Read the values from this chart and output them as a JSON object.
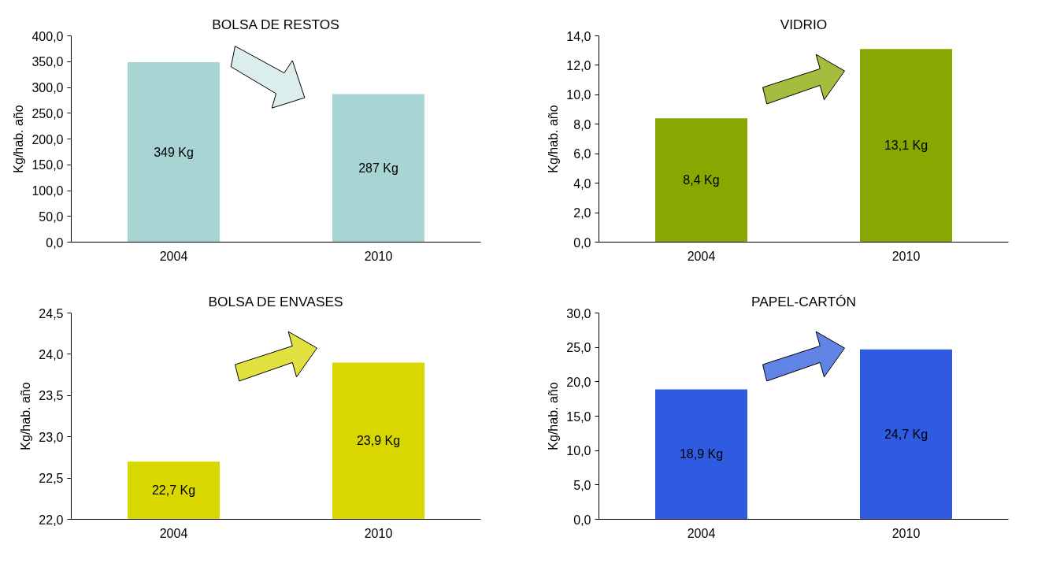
{
  "chart_data": [
    {
      "type": "bar",
      "title": "BOLSA DE RESTOS",
      "ylabel": "Kg/hab. año",
      "categories": [
        "2004",
        "2010"
      ],
      "values": [
        349,
        287
      ],
      "value_labels": [
        "349 Kg",
        "287 Kg"
      ],
      "color": "#a8d4d4",
      "ylim": [
        0,
        400
      ],
      "yticks": [
        {
          "value": 0,
          "label": "0,0"
        },
        {
          "value": 50,
          "label": "50,0"
        },
        {
          "value": 100,
          "label": "100,0"
        },
        {
          "value": 150,
          "label": "150,0"
        },
        {
          "value": 200,
          "label": "200,0"
        },
        {
          "value": 250,
          "label": "250,0"
        },
        {
          "value": 300,
          "label": "300,0"
        },
        {
          "value": 350,
          "label": "350,0"
        },
        {
          "value": 400,
          "label": "400,0"
        }
      ],
      "grid": false
    },
    {
      "type": "bar",
      "title": "VIDRIO",
      "ylabel": "Kg/hab. año",
      "categories": [
        "2004",
        "2010"
      ],
      "values": [
        8.4,
        13.1
      ],
      "value_labels": [
        "8,4 Kg",
        "13,1 Kg"
      ],
      "color": "#86a800",
      "ylim": [
        0,
        14
      ],
      "yticks": [
        {
          "value": 0,
          "label": "0,0"
        },
        {
          "value": 2,
          "label": "2,0"
        },
        {
          "value": 4,
          "label": "4,0"
        },
        {
          "value": 6,
          "label": "6,0"
        },
        {
          "value": 8,
          "label": "8,0"
        },
        {
          "value": 10,
          "label": "10,0"
        },
        {
          "value": 12,
          "label": "12,0"
        },
        {
          "value": 14,
          "label": "14,0"
        }
      ],
      "grid": false
    },
    {
      "type": "bar",
      "title": "BOLSA DE ENVASES",
      "ylabel": "Kg/hab. año",
      "categories": [
        "2004",
        "2010"
      ],
      "values": [
        22.7,
        23.9
      ],
      "value_labels": [
        "22,7 Kg",
        "23,9 Kg"
      ],
      "color": "#d8d800",
      "ylim": [
        22,
        24.5
      ],
      "yticks": [
        {
          "value": 22,
          "label": "22,0"
        },
        {
          "value": 22.5,
          "label": "22,5"
        },
        {
          "value": 23,
          "label": "23,0"
        },
        {
          "value": 23.5,
          "label": "23,5"
        },
        {
          "value": 24,
          "label": "24,0"
        },
        {
          "value": 24.5,
          "label": "24,5"
        }
      ],
      "grid": false
    },
    {
      "type": "bar",
      "title": "PAPEL-CARTÓN",
      "ylabel": "Kg/hab. año",
      "categories": [
        "2004",
        "2010"
      ],
      "values": [
        18.9,
        24.7
      ],
      "value_labels": [
        "18,9 Kg",
        "24,7 Kg"
      ],
      "color": "#2f5be0",
      "ylim": [
        0,
        30
      ],
      "yticks": [
        {
          "value": 0,
          "label": "0,0"
        },
        {
          "value": 5,
          "label": "5,0"
        },
        {
          "value": 10,
          "label": "10,0"
        },
        {
          "value": 15,
          "label": "15,0"
        },
        {
          "value": 20,
          "label": "20,0"
        },
        {
          "value": 25,
          "label": "25,0"
        },
        {
          "value": 30,
          "label": "30,0"
        }
      ],
      "grid": false
    }
  ]
}
